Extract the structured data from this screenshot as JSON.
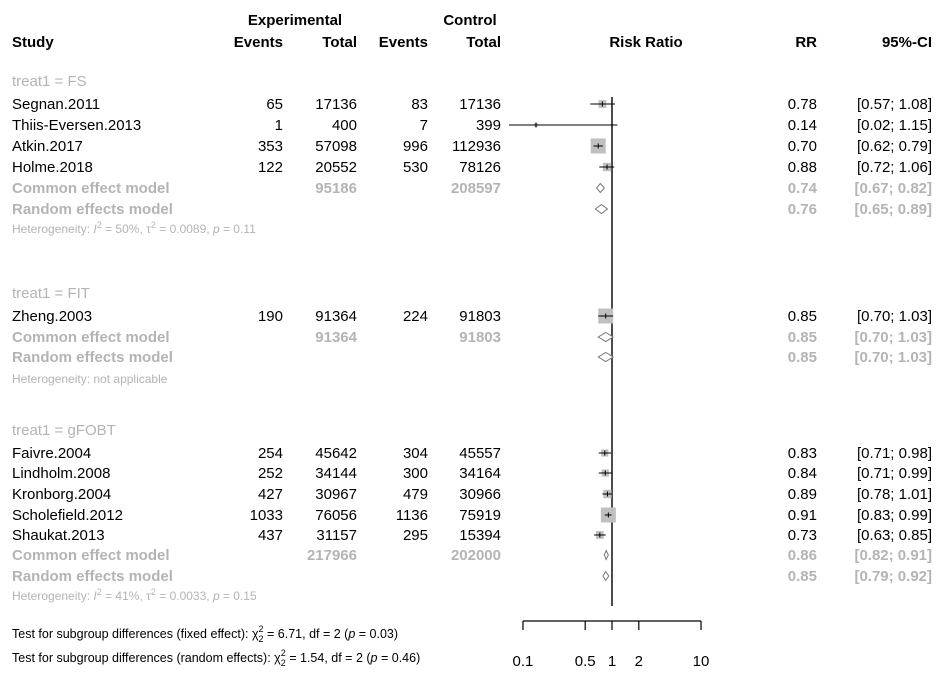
{
  "chart_data": {
    "type": "forest",
    "headers": {
      "experimental": "Experimental",
      "control": "Control",
      "study": "Study",
      "events": "Events",
      "total": "Total",
      "plot": "Risk Ratio",
      "rr": "RR",
      "ci": "95%-CI"
    },
    "x_scale": "log",
    "xlim": [
      0.05,
      10
    ],
    "reference_line": 1,
    "x_ticks": [
      0.1,
      0.5,
      1,
      2,
      10
    ],
    "x_tick_labels": [
      "0.1",
      "0.5",
      "1",
      "2",
      "10"
    ],
    "groups": [
      {
        "label": "treat1 = FS",
        "studies": [
          {
            "name": "Segnan.2011",
            "e_events": "65",
            "e_total": "17136",
            "c_events": "83",
            "c_total": "17136",
            "rr": 0.78,
            "lower": 0.57,
            "upper": 1.08,
            "weight": 0.4,
            "rr_text": "0.78",
            "ci_text": "[0.57; 1.08]"
          },
          {
            "name": "Thiis-Eversen.2013",
            "e_events": "1",
            "e_total": "400",
            "c_events": "7",
            "c_total": "399",
            "rr": 0.14,
            "lower": 0.02,
            "upper": 1.15,
            "weight": 0.05,
            "rr_text": "0.14",
            "ci_text": "[0.02; 1.15]"
          },
          {
            "name": "Atkin.2017",
            "e_events": "353",
            "e_total": "57098",
            "c_events": "996",
            "c_total": "112936",
            "rr": 0.7,
            "lower": 0.62,
            "upper": 0.79,
            "weight": 1.0,
            "rr_text": "0.70",
            "ci_text": "[0.62; 0.79]"
          },
          {
            "name": "Holme.2018",
            "e_events": "122",
            "e_total": "20552",
            "c_events": "530",
            "c_total": "78126",
            "rr": 0.88,
            "lower": 0.72,
            "upper": 1.06,
            "weight": 0.45,
            "rr_text": "0.88",
            "ci_text": "[0.72; 1.06]"
          }
        ],
        "common": {
          "label": "Common effect model",
          "e_total": "95186",
          "c_total": "208597",
          "rr": 0.74,
          "lower": 0.67,
          "upper": 0.82,
          "rr_text": "0.74",
          "ci_text": "[0.67; 0.82]"
        },
        "random": {
          "label": "Random effects model",
          "rr": 0.76,
          "lower": 0.65,
          "upper": 0.89,
          "rr_text": "0.76",
          "ci_text": "[0.65; 0.89]"
        },
        "heterogeneity": {
          "pre": "Heterogeneity: ",
          "I": "I",
          "sup2": "2",
          "mid": " = 50%, ",
          "tau": "τ",
          "mid2": " = 0.0089, ",
          "p": "p",
          "post": " = 0.11"
        }
      },
      {
        "label": "treat1 = FIT",
        "studies": [
          {
            "name": "Zheng.2003",
            "e_events": "190",
            "e_total": "91364",
            "c_events": "224",
            "c_total": "91803",
            "rr": 0.85,
            "lower": 0.7,
            "upper": 1.03,
            "weight": 1.0,
            "rr_text": "0.85",
            "ci_text": "[0.70; 1.03]"
          }
        ],
        "common": {
          "label": "Common effect model",
          "e_total": "91364",
          "c_total": "91803",
          "rr": 0.85,
          "lower": 0.7,
          "upper": 1.03,
          "rr_text": "0.85",
          "ci_text": "[0.70; 1.03]"
        },
        "random": {
          "label": "Random effects model",
          "rr": 0.85,
          "lower": 0.7,
          "upper": 1.03,
          "rr_text": "0.85",
          "ci_text": "[0.70; 1.03]"
        },
        "heterogeneity_text": "Heterogeneity: not applicable"
      },
      {
        "label": "treat1 = gFOBT",
        "studies": [
          {
            "name": "Faivre.2004",
            "e_events": "254",
            "e_total": "45642",
            "c_events": "304",
            "c_total": "45557",
            "rr": 0.83,
            "lower": 0.71,
            "upper": 0.98,
            "weight": 0.35,
            "rr_text": "0.83",
            "ci_text": "[0.71; 0.98]"
          },
          {
            "name": "Lindholm.2008",
            "e_events": "252",
            "e_total": "34144",
            "c_events": "300",
            "c_total": "34164",
            "rr": 0.84,
            "lower": 0.71,
            "upper": 0.99,
            "weight": 0.35,
            "rr_text": "0.84",
            "ci_text": "[0.71; 0.99]"
          },
          {
            "name": "Kronborg.2004",
            "e_events": "427",
            "e_total": "30967",
            "c_events": "479",
            "c_total": "30966",
            "rr": 0.89,
            "lower": 0.78,
            "upper": 1.01,
            "weight": 0.45,
            "rr_text": "0.89",
            "ci_text": "[0.78; 1.01]"
          },
          {
            "name": "Scholefield.2012",
            "e_events": "1033",
            "e_total": "76056",
            "c_events": "1136",
            "c_total": "75919",
            "rr": 0.91,
            "lower": 0.83,
            "upper": 0.99,
            "weight": 1.0,
            "rr_text": "0.91",
            "ci_text": "[0.83; 0.99]"
          },
          {
            "name": "Shaukat.2013",
            "e_events": "437",
            "e_total": "31157",
            "c_events": "295",
            "c_total": "15394",
            "rr": 0.73,
            "lower": 0.63,
            "upper": 0.85,
            "weight": 0.4,
            "rr_text": "0.73",
            "ci_text": "[0.63; 0.85]"
          }
        ],
        "common": {
          "label": "Common effect model",
          "e_total": "217966",
          "c_total": "202000",
          "rr": 0.86,
          "lower": 0.82,
          "upper": 0.91,
          "rr_text": "0.86",
          "ci_text": "[0.82; 0.91]"
        },
        "random": {
          "label": "Random effects model",
          "rr": 0.85,
          "lower": 0.79,
          "upper": 0.92,
          "rr_text": "0.85",
          "ci_text": "[0.79; 0.92]"
        },
        "heterogeneity": {
          "pre": "Heterogeneity: ",
          "I": "I",
          "sup2": "2",
          "mid": " = 41%, ",
          "tau": "τ",
          "mid2": " = 0.0033, ",
          "p": "p",
          "post": " = 0.15"
        }
      }
    ],
    "subgroup_tests": [
      {
        "pre": "Test for subgroup differences (fixed effect): ",
        "chi": "χ",
        "sub": "2",
        "sup": "2",
        "stat": " = 6.71, df = 2 (",
        "p": "p",
        "pval": " = 0.03)"
      },
      {
        "pre": "Test for subgroup differences (random effects): ",
        "chi": "χ",
        "sub": "2",
        "sup": "2",
        "stat": " = 1.54, df = 2 (",
        "p": "p",
        "pval": " = 0.46)"
      }
    ]
  },
  "colors": {
    "text": "#000000",
    "pooled": "#b4b4b4",
    "square": "#c0c0c0",
    "line": "#000000"
  }
}
